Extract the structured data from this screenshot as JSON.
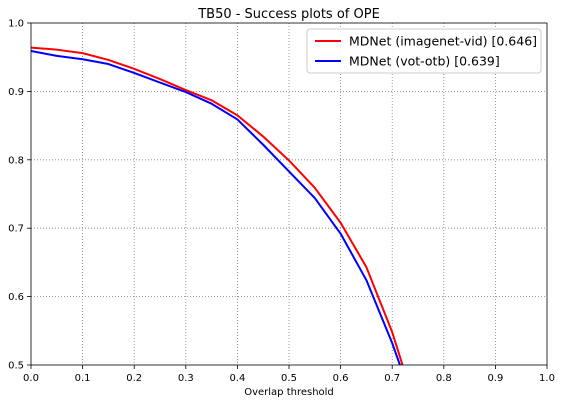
{
  "chart_data": {
    "type": "line",
    "title": "TB50 - Success plots of OPE",
    "xlabel": "Overlap threshold",
    "ylabel": "",
    "xlim": [
      0.0,
      1.0
    ],
    "ylim": [
      0.5,
      1.0
    ],
    "xticks": [
      "0.0",
      "0.1",
      "0.2",
      "0.3",
      "0.4",
      "0.5",
      "0.6",
      "0.7",
      "0.8",
      "0.9",
      "1.0"
    ],
    "yticks": [
      "0.5",
      "0.6",
      "0.7",
      "0.8",
      "0.9",
      "1.0"
    ],
    "grid": true,
    "legend_position": "top-right",
    "series": [
      {
        "name": "MDNet (imagenet-vid) [0.646]",
        "color": "#ff0000",
        "x": [
          0.0,
          0.05,
          0.1,
          0.15,
          0.2,
          0.25,
          0.3,
          0.35,
          0.4,
          0.45,
          0.5,
          0.55,
          0.6,
          0.65,
          0.7,
          0.72
        ],
        "y": [
          0.964,
          0.961,
          0.956,
          0.946,
          0.933,
          0.918,
          0.902,
          0.887,
          0.865,
          0.834,
          0.799,
          0.759,
          0.708,
          0.643,
          0.548,
          0.5
        ]
      },
      {
        "name": "MDNet (vot-otb) [0.639]",
        "color": "#0000ff",
        "x": [
          0.0,
          0.05,
          0.1,
          0.15,
          0.2,
          0.25,
          0.3,
          0.35,
          0.4,
          0.45,
          0.5,
          0.55,
          0.6,
          0.65,
          0.7,
          0.715
        ],
        "y": [
          0.959,
          0.952,
          0.947,
          0.94,
          0.927,
          0.913,
          0.899,
          0.882,
          0.859,
          0.822,
          0.783,
          0.744,
          0.692,
          0.624,
          0.532,
          0.5
        ]
      }
    ]
  }
}
